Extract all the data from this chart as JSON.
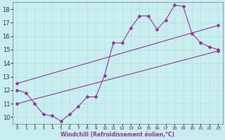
{
  "xlabel": "Windchill (Refroidissement éolien,°C)",
  "bg_color": "#c8eef0",
  "grid_color": "#b0dde0",
  "line_color": "#993399",
  "xlim": [
    -0.5,
    23.5
  ],
  "ylim": [
    9.5,
    18.5
  ],
  "xticks": [
    0,
    1,
    2,
    3,
    4,
    5,
    6,
    7,
    8,
    9,
    10,
    11,
    12,
    13,
    14,
    15,
    16,
    17,
    18,
    19,
    20,
    21,
    22,
    23
  ],
  "yticks": [
    10,
    11,
    12,
    13,
    14,
    15,
    16,
    17,
    18
  ],
  "line1_x": [
    0,
    1,
    2,
    3,
    4,
    5,
    6,
    7,
    8,
    9,
    10,
    11,
    12,
    13,
    14,
    15,
    16,
    17,
    18,
    19,
    20,
    21,
    22,
    23
  ],
  "line1_y": [
    12.0,
    11.8,
    11.0,
    10.2,
    10.1,
    9.7,
    10.2,
    10.8,
    11.5,
    11.5,
    13.1,
    15.5,
    15.5,
    16.6,
    17.5,
    17.5,
    16.5,
    17.2,
    18.3,
    18.2,
    16.2,
    15.5,
    15.2,
    15.0
  ],
  "line2_x": [
    0,
    23
  ],
  "line2_y": [
    11.0,
    14.9
  ],
  "line3_x": [
    0,
    23
  ],
  "line3_y": [
    12.5,
    16.8
  ]
}
